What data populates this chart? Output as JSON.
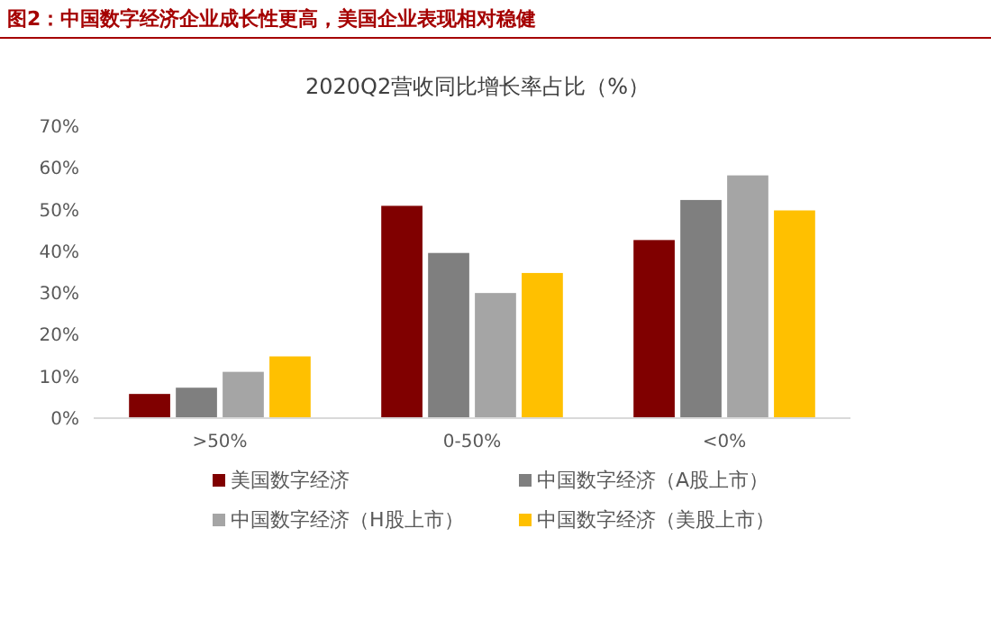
{
  "chart_data": {
    "type": "bar",
    "title": "图2：中国数字经济企业成长性更高，美国企业表现相对稳健",
    "subtitle": "2020Q2营收同比增长率占比（%）",
    "categories": [
      ">50%",
      "0-50%",
      "<0%"
    ],
    "series": [
      {
        "name": "美国数字经济",
        "color": "#800000",
        "values": [
          5.8,
          50.9,
          42.7
        ]
      },
      {
        "name": "中国数字经济（A股上市）",
        "color": "#7f7f7f",
        "values": [
          7.3,
          39.6,
          52.3
        ]
      },
      {
        "name": "中国数字经济（H股上市）",
        "color": "#a5a5a5",
        "values": [
          11.1,
          30,
          58.2
        ]
      },
      {
        "name": "中国数字经济（美股上市）",
        "color": "#ffc000",
        "values": [
          14.8,
          34.8,
          49.8
        ]
      }
    ],
    "ylim": [
      0,
      70
    ],
    "yticks": [
      {
        "value": 0,
        "label": "0%"
      },
      {
        "value": 10,
        "label": "10%"
      },
      {
        "value": 20,
        "label": "20%"
      },
      {
        "value": 30,
        "label": "30%"
      },
      {
        "value": 40,
        "label": "40%"
      },
      {
        "value": 50,
        "label": "50%"
      },
      {
        "value": 60,
        "label": "60%"
      },
      {
        "value": 70,
        "label": "70%"
      }
    ],
    "grid": false,
    "legend": "bottom"
  }
}
